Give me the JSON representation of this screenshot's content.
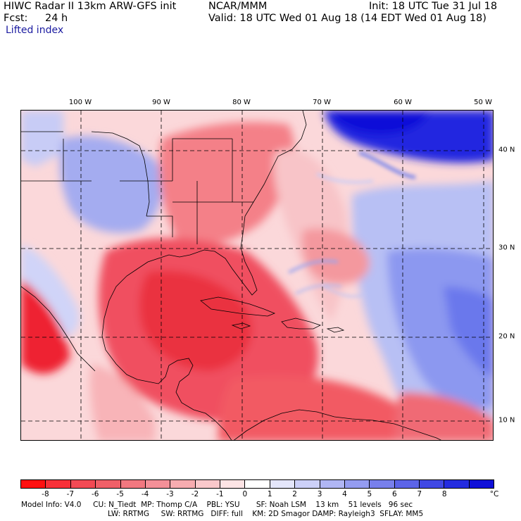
{
  "header": {
    "title_left": "HIWC Radar II 13km ARW-GFS init",
    "org": "NCAR/MMM",
    "init": "Init: 18 UTC Tue 31 Jul 18",
    "fcst_label": "Fcst:",
    "fcst_value": "24 h",
    "valid": "Valid: 18 UTC Wed 01 Aug 18 (14 EDT Wed 01 Aug 18)",
    "field": "Lifted index"
  },
  "map": {
    "lon_labels": [
      "100 W",
      "90 W",
      "80 W",
      "70 W",
      "60 W",
      "50 W"
    ],
    "lat_labels": [
      "40 N",
      "30 N",
      "20 N",
      "10 N"
    ],
    "colors": {
      "deep_red": "#e8101a",
      "red": "#f04850",
      "light_red": "#f7a0a4",
      "pale_red": "#fbd0d2",
      "white": "#ffffff",
      "pale_blue": "#d8dcf8",
      "light_blue": "#a8b0f0",
      "blue": "#6070e8",
      "deep_blue": "#1010e0"
    }
  },
  "colorbar": {
    "labels": [
      "-8",
      "-7",
      "-6",
      "-5",
      "-4",
      "-3",
      "-2",
      "-1",
      "0",
      "1",
      "2",
      "3",
      "4",
      "5",
      "6",
      "7",
      "8"
    ],
    "unit": "°C",
    "colors": [
      "#ff1010",
      "#f83038",
      "#f34a54",
      "#f06068",
      "#f27880",
      "#f49098",
      "#f7acb0",
      "#fac8cb",
      "#fde4e5",
      "#ffffff",
      "#e4e6fb",
      "#ccd0f8",
      "#b0b6f4",
      "#949cf0",
      "#7880ec",
      "#5c64e8",
      "#4048e4",
      "#242ce0",
      "#1010d8"
    ]
  },
  "footer": {
    "line1": "Model Info: V4.0     CU: N_Tiedt  MP: Thomp C/A    PBL: YSU       SF: Noah LSM    13 km    51 levels   96 sec",
    "line2": "LW: RRTMG     SW: RRTMG   DIFF: full    KM: 2D Smagor DAMP: Rayleigh3  SFLAY: MM5"
  }
}
